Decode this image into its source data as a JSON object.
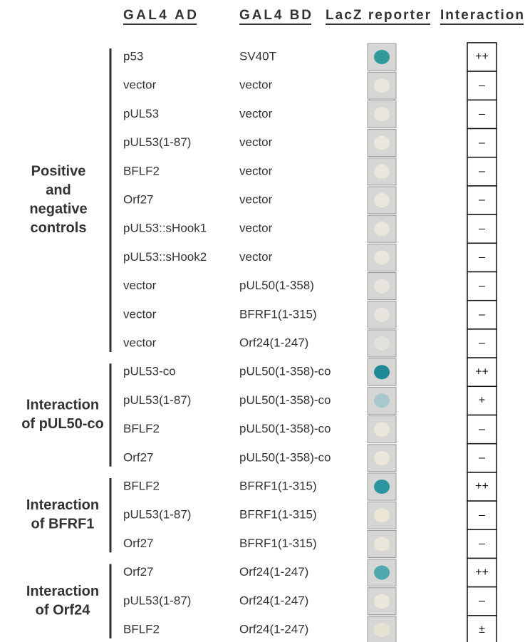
{
  "headers": [
    "GAL4 AD",
    "GAL4 BD",
    "LacZ reporter",
    "Interaction"
  ],
  "groups": [
    {
      "label": [
        "Positive",
        "and",
        "negative",
        "controls"
      ],
      "rows": [
        {
          "ad": "p53",
          "bd": "SV40T",
          "interaction": "++",
          "spot": "#2f9a9c"
        },
        {
          "ad": "vector",
          "bd": "vector",
          "interaction": "–",
          "spot": "#ebe7dc"
        },
        {
          "ad": "pUL53",
          "bd": "vector",
          "interaction": "–",
          "spot": "#ebe7dc"
        },
        {
          "ad": "pUL53(1-87)",
          "bd": "vector",
          "interaction": "–",
          "spot": "#ebe7dc"
        },
        {
          "ad": "BFLF2",
          "bd": "vector",
          "interaction": "–",
          "spot": "#ebe7dc"
        },
        {
          "ad": "Orf27",
          "bd": "vector",
          "interaction": "–",
          "spot": "#ebe7dc"
        },
        {
          "ad": "pUL53::sHook1",
          "bd": "vector",
          "interaction": "–",
          "spot": "#ebe7dc"
        },
        {
          "ad": "pUL53::sHook2",
          "bd": "vector",
          "interaction": "–",
          "spot": "#ebe7dc"
        },
        {
          "ad": "vector",
          "bd": "pUL50(1-358)",
          "interaction": "–",
          "spot": "#e6e4dc"
        },
        {
          "ad": "vector",
          "bd": "BFRF1(1-315)",
          "interaction": "–",
          "spot": "#e6e4dc"
        },
        {
          "ad": "vector",
          "bd": "Orf24(1-247)",
          "interaction": "–",
          "spot": "#e2e1dc"
        }
      ]
    },
    {
      "label": [
        "Interaction",
        "of pUL50-co"
      ],
      "rows": [
        {
          "ad": "pUL53-co",
          "bd": "pUL50(1-358)-co",
          "interaction": "++",
          "spot": "#1f8a96"
        },
        {
          "ad": "pUL53(1-87)",
          "bd": "pUL50(1-358)-co",
          "interaction": "+",
          "spot": "#a7c8cc"
        },
        {
          "ad": "BFLF2",
          "bd": "pUL50(1-358)-co",
          "interaction": "–",
          "spot": "#ebe7dc"
        },
        {
          "ad": "Orf27",
          "bd": "pUL50(1-358)-co",
          "interaction": "–",
          "spot": "#ebe7dc"
        }
      ]
    },
    {
      "label": [
        "Interaction",
        "of BFRF1"
      ],
      "rows": [
        {
          "ad": "BFLF2",
          "bd": "BFRF1(1-315)",
          "interaction": "++",
          "spot": "#2b96a0"
        },
        {
          "ad": "pUL53(1-87)",
          "bd": "BFRF1(1-315)",
          "interaction": "–",
          "spot": "#ebe6d6"
        },
        {
          "ad": "Orf27",
          "bd": "BFRF1(1-315)",
          "interaction": "–",
          "spot": "#ebe7dc"
        }
      ]
    },
    {
      "label": [
        "Interaction",
        "of Orf24"
      ],
      "rows": [
        {
          "ad": "Orf27",
          "bd": "Orf24(1-247)",
          "interaction": "++",
          "spot": "#4fa8ae"
        },
        {
          "ad": "pUL53(1-87)",
          "bd": "Orf24(1-247)",
          "interaction": "–",
          "spot": "#ebe7dc"
        },
        {
          "ad": "BFLF2",
          "bd": "Orf24(1-247)",
          "interaction": "±",
          "spot": "#e6e2d2"
        }
      ]
    }
  ]
}
